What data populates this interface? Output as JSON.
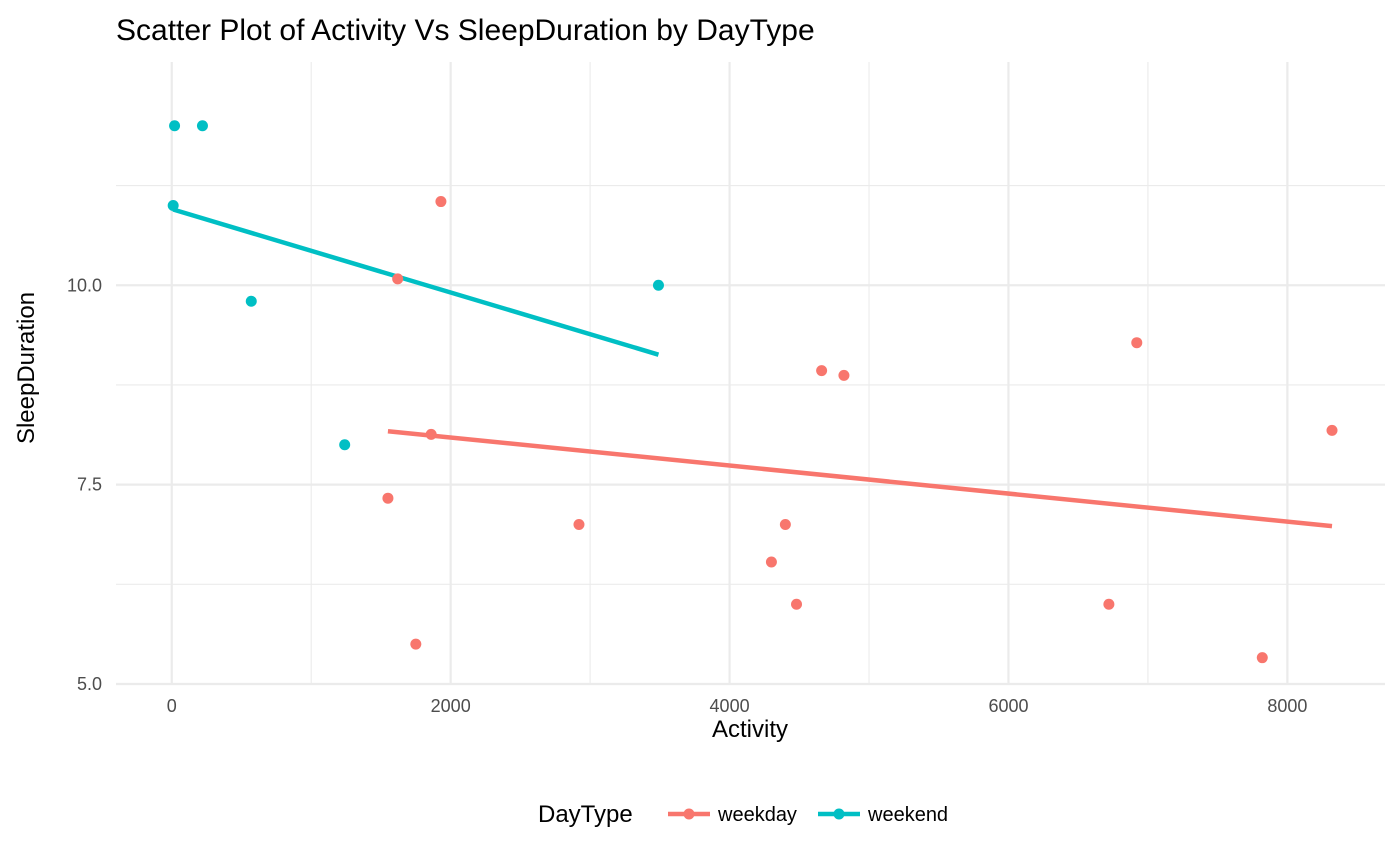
{
  "chart_data": {
    "type": "scatter",
    "title": "Scatter Plot of Activity Vs SleepDuration by DayType",
    "xlabel": "Activity",
    "ylabel": "SleepDuration",
    "xlim": [
      -400,
      8700
    ],
    "ylim": [
      5.0,
      12.8
    ],
    "x_ticks": [
      0,
      2000,
      4000,
      6000,
      8000
    ],
    "x_tick_labels": [
      "0",
      "2000",
      "4000",
      "6000",
      "8000"
    ],
    "y_ticks": [
      5.0,
      7.5,
      10.0
    ],
    "y_tick_labels": [
      "5.0",
      "7.5",
      "10.0"
    ],
    "grid": true,
    "legend": {
      "title": "DayType",
      "placement": "bottom"
    },
    "series": [
      {
        "name": "weekday",
        "color": "#F8766D",
        "points": [
          [
            1550,
            7.33
          ],
          [
            1620,
            10.08
          ],
          [
            1750,
            5.5
          ],
          [
            1860,
            8.13
          ],
          [
            1930,
            11.05
          ],
          [
            2920,
            7.0
          ],
          [
            4300,
            6.53
          ],
          [
            4400,
            7.0
          ],
          [
            4480,
            6.0
          ],
          [
            4660,
            8.93
          ],
          [
            4820,
            8.87
          ],
          [
            6720,
            6.0
          ],
          [
            6920,
            9.28
          ],
          [
            7820,
            5.33
          ],
          [
            8320,
            8.18
          ]
        ],
        "trend": [
          [
            1550,
            8.17
          ],
          [
            8320,
            6.98
          ]
        ]
      },
      {
        "name": "weekend",
        "color": "#00BFC4",
        "points": [
          [
            20,
            12.0
          ],
          [
            220,
            12.0
          ],
          [
            10,
            11.0
          ],
          [
            570,
            9.8
          ],
          [
            1240,
            8.0
          ],
          [
            3490,
            10.0
          ]
        ],
        "trend": [
          [
            10,
            10.95
          ],
          [
            3490,
            9.13
          ]
        ]
      }
    ]
  }
}
